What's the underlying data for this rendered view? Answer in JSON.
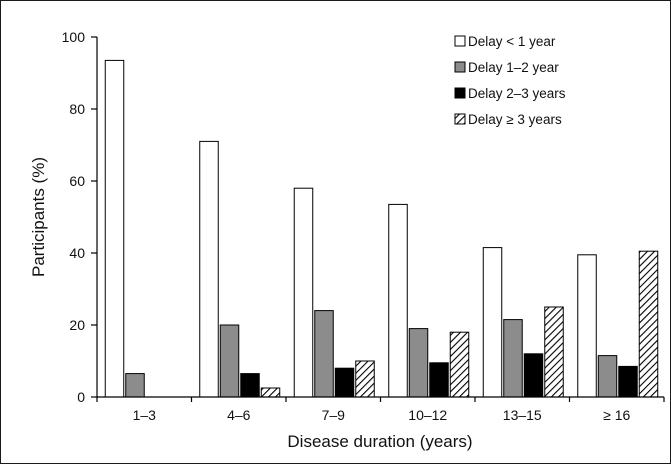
{
  "chart_data": {
    "type": "bar",
    "xlabel": "Disease duration (years)",
    "ylabel": "Participants (%)",
    "ylim": [
      0,
      100
    ],
    "yticks": [
      0,
      20,
      40,
      60,
      80,
      100
    ],
    "grid": false,
    "legend_position": "top-right",
    "categories": [
      "1–3",
      "4–6",
      "7–9",
      "10–12",
      "13–15",
      "≥ 16"
    ],
    "series": [
      {
        "name": "Delay < 1 year",
        "fill": "#ffffff",
        "pattern": "none",
        "values": [
          93.5,
          71,
          58,
          53.5,
          41.5,
          39.5
        ]
      },
      {
        "name": "Delay 1–2 year",
        "fill": "#8c8c8c",
        "pattern": "none",
        "values": [
          6.5,
          20,
          24,
          19,
          21.5,
          11.5
        ]
      },
      {
        "name": "Delay 2–3 years",
        "fill": "#000000",
        "pattern": "none",
        "values": [
          0,
          6.5,
          8,
          9.5,
          12,
          8.5
        ]
      },
      {
        "name": "Delay ≥ 3 years",
        "fill": "#ffffff",
        "pattern": "diagonal-hatch",
        "values": [
          0,
          2.5,
          10,
          18,
          25,
          40.5
        ]
      }
    ]
  }
}
